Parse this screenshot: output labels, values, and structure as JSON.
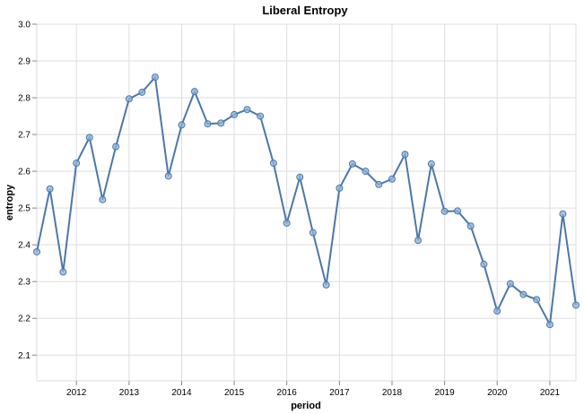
{
  "chart_data": {
    "type": "line",
    "title": "Liberal Entropy",
    "xlabel": "period",
    "ylabel": "entropy",
    "x_ticks": [
      "2012",
      "2013",
      "2014",
      "2015",
      "2016",
      "2017",
      "2018",
      "2019",
      "2020",
      "2021"
    ],
    "y_ticks": [
      "2.1",
      "2.2",
      "2.3",
      "2.4",
      "2.5",
      "2.6",
      "2.7",
      "2.8",
      "2.9",
      "3.0"
    ],
    "ylim": [
      2.03,
      3.0
    ],
    "xlim": [
      "2011-04-01",
      "2021-07-01"
    ],
    "grid": true,
    "colors": {
      "line": "#4c78a8",
      "point_fill": "#8fb1d9",
      "grid": "#dddddd"
    },
    "series": [
      {
        "x": [
          "2011-04-01",
          "2011-07-01",
          "2011-10-01",
          "2012-01-01",
          "2012-04-01",
          "2012-07-01",
          "2012-10-01",
          "2013-01-01",
          "2013-04-01",
          "2013-07-01",
          "2013-10-01",
          "2014-01-01",
          "2014-04-01",
          "2014-07-01",
          "2014-10-01",
          "2015-01-01",
          "2015-04-01",
          "2015-07-01",
          "2015-10-01",
          "2016-01-01",
          "2016-04-01",
          "2016-07-01",
          "2016-10-01",
          "2017-01-01",
          "2017-04-01",
          "2017-07-01",
          "2017-10-01",
          "2018-01-01",
          "2018-04-01",
          "2018-07-01",
          "2018-10-01",
          "2019-01-01",
          "2019-04-01",
          "2019-07-01",
          "2019-10-01",
          "2020-01-01",
          "2020-04-01",
          "2020-07-01",
          "2020-10-01",
          "2021-01-01",
          "2021-04-01",
          "2021-07-01"
        ],
        "values": [
          2.381,
          2.552,
          2.326,
          2.622,
          2.692,
          2.523,
          2.667,
          2.797,
          2.815,
          2.856,
          2.587,
          2.726,
          2.817,
          2.729,
          2.731,
          2.754,
          2.768,
          2.75,
          2.622,
          2.459,
          2.584,
          2.433,
          2.291,
          2.554,
          2.62,
          2.6,
          2.564,
          2.579,
          2.646,
          2.412,
          2.62,
          2.491,
          2.492,
          2.451,
          2.347,
          2.22,
          2.294,
          2.265,
          2.251,
          2.183,
          2.484,
          2.236
        ]
      }
    ]
  }
}
